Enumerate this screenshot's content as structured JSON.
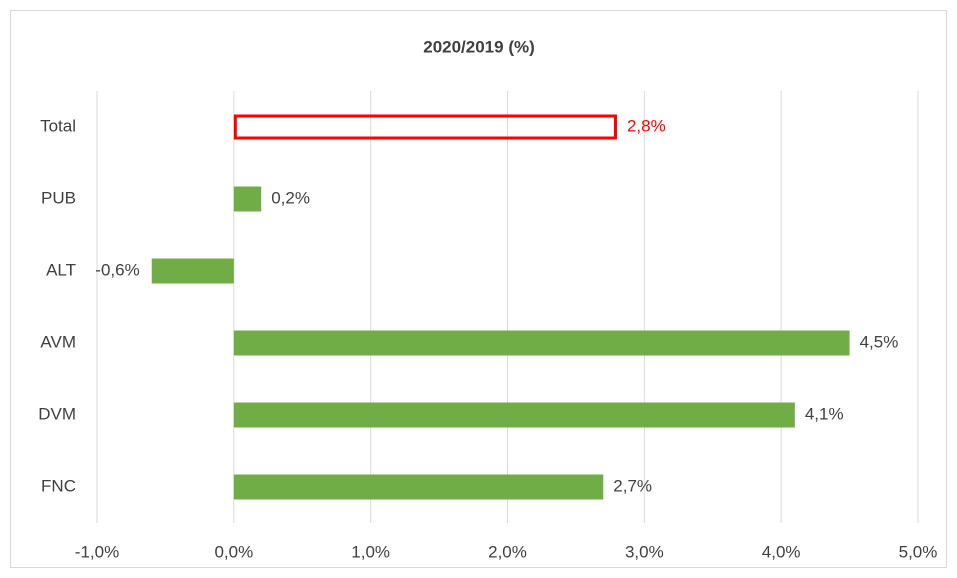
{
  "chart_data": {
    "type": "hbar",
    "title": "2020/2019 (%)",
    "categories": [
      "Total",
      "PUB",
      "ALT",
      "AVM",
      "DVM",
      "FNC"
    ],
    "values": [
      2.8,
      0.2,
      -0.6,
      4.5,
      4.1,
      2.7
    ],
    "value_labels": [
      "2,8%",
      "0,2%",
      "-0,6%",
      "4,5%",
      "4,1%",
      "2,7%"
    ],
    "colors": [
      "#ff0000",
      "#70ad47",
      "#70ad47",
      "#70ad47",
      "#70ad47",
      "#70ad47"
    ],
    "bar_styles": [
      "outline",
      "fill",
      "fill",
      "fill",
      "fill",
      "fill"
    ],
    "xlim": [
      -1,
      5
    ],
    "xticks": [
      {
        "value": -1,
        "label": "-1,0%"
      },
      {
        "value": 0,
        "label": "0,0%"
      },
      {
        "value": 1,
        "label": "1,0%"
      },
      {
        "value": 2,
        "label": "2,0%"
      },
      {
        "value": 3,
        "label": "3,0%"
      },
      {
        "value": 4,
        "label": "4,0%"
      },
      {
        "value": 5,
        "label": "5,0%"
      }
    ],
    "grid": true
  }
}
